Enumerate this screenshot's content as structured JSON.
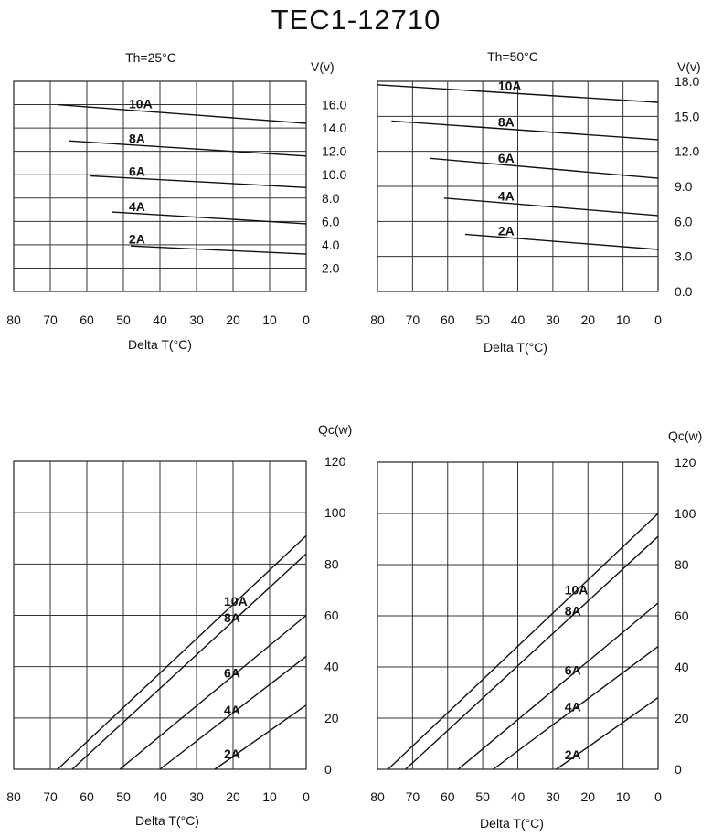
{
  "title": "TEC1-12710",
  "chart_data": [
    {
      "type": "line",
      "title": "Th=25°C",
      "xlabel": "Delta T(°C)",
      "ylabel": "V(v)",
      "xlim": [
        80,
        0
      ],
      "ylim": [
        0,
        18
      ],
      "xticks": [
        "80",
        "70",
        "60",
        "50",
        "40",
        "30",
        "20",
        "10",
        "0"
      ],
      "yticks": [
        "16.0",
        "14.0",
        "12.0",
        "10.0",
        "8.0",
        "6.0",
        "4.0",
        "2.0"
      ],
      "ytick_values": [
        16,
        14,
        12,
        10,
        8,
        6,
        4,
        2
      ],
      "grid": true,
      "series": [
        {
          "name": "10A",
          "x": [
            68,
            0
          ],
          "y": [
            16.0,
            14.4
          ]
        },
        {
          "name": "8A",
          "x": [
            65,
            0
          ],
          "y": [
            12.9,
            11.6
          ]
        },
        {
          "name": "6A",
          "x": [
            59,
            0
          ],
          "y": [
            9.9,
            8.9
          ]
        },
        {
          "name": "4A",
          "x": [
            53,
            0
          ],
          "y": [
            6.8,
            5.8
          ]
        },
        {
          "name": "2A",
          "x": [
            48,
            0
          ],
          "y": [
            3.9,
            3.2
          ]
        }
      ]
    },
    {
      "type": "line",
      "title": "Th=50°C",
      "xlabel": "Delta T(°C)",
      "ylabel": "V(v)",
      "xlim": [
        80,
        0
      ],
      "ylim": [
        0,
        18
      ],
      "xticks": [
        "80",
        "70",
        "60",
        "50",
        "40",
        "30",
        "20",
        "10",
        "0"
      ],
      "yticks": [
        "18.0",
        "15.0",
        "12.0",
        "9.0",
        "6.0",
        "3.0",
        "0.0"
      ],
      "ytick_values": [
        18,
        15,
        12,
        9,
        6,
        3,
        0
      ],
      "grid": true,
      "series": [
        {
          "name": "10A",
          "x": [
            80,
            0
          ],
          "y": [
            17.7,
            16.2
          ]
        },
        {
          "name": "8A",
          "x": [
            76,
            0
          ],
          "y": [
            14.6,
            13.0
          ]
        },
        {
          "name": "6A",
          "x": [
            65,
            0
          ],
          "y": [
            11.4,
            9.7
          ]
        },
        {
          "name": "4A",
          "x": [
            61,
            0
          ],
          "y": [
            8.0,
            6.5
          ]
        },
        {
          "name": "2A",
          "x": [
            55,
            0
          ],
          "y": [
            4.9,
            3.6
          ]
        }
      ]
    },
    {
      "type": "line",
      "title": "",
      "xlabel": "Delta T(°C)",
      "ylabel": "Qc(w)",
      "xlim": [
        80,
        0
      ],
      "ylim": [
        0,
        120
      ],
      "xticks": [
        "80",
        "70",
        "60",
        "50",
        "40",
        "30",
        "20",
        "10",
        "0"
      ],
      "yticks": [
        "120",
        "100",
        "80",
        "60",
        "40",
        "20",
        "0"
      ],
      "ytick_values": [
        120,
        100,
        80,
        60,
        40,
        20,
        0
      ],
      "grid": true,
      "series": [
        {
          "name": "10A",
          "x": [
            68,
            0
          ],
          "y": [
            0,
            91
          ]
        },
        {
          "name": "8A",
          "x": [
            64,
            0
          ],
          "y": [
            0,
            84
          ]
        },
        {
          "name": "6A",
          "x": [
            51,
            0
          ],
          "y": [
            0,
            60
          ]
        },
        {
          "name": "4A",
          "x": [
            40,
            0
          ],
          "y": [
            0,
            44
          ]
        },
        {
          "name": "2A",
          "x": [
            25,
            0
          ],
          "y": [
            0,
            25
          ]
        }
      ]
    },
    {
      "type": "line",
      "title": "",
      "xlabel": "Delta T(°C)",
      "ylabel": "Qc(w)",
      "xlim": [
        80,
        0
      ],
      "ylim": [
        0,
        120
      ],
      "xticks": [
        "80",
        "70",
        "60",
        "50",
        "40",
        "30",
        "20",
        "10",
        "0"
      ],
      "yticks": [
        "120",
        "100",
        "80",
        "60",
        "40",
        "20",
        "0"
      ],
      "ytick_values": [
        120,
        100,
        80,
        60,
        40,
        20,
        0
      ],
      "grid": true,
      "series": [
        {
          "name": "10A",
          "x": [
            77,
            0
          ],
          "y": [
            0,
            100
          ]
        },
        {
          "name": "8A",
          "x": [
            72,
            0
          ],
          "y": [
            0,
            91
          ]
        },
        {
          "name": "6A",
          "x": [
            57,
            0
          ],
          "y": [
            0,
            65
          ]
        },
        {
          "name": "4A",
          "x": [
            47,
            0
          ],
          "y": [
            0,
            48
          ]
        },
        {
          "name": "2A",
          "x": [
            29,
            0
          ],
          "y": [
            0,
            28
          ]
        }
      ]
    }
  ]
}
